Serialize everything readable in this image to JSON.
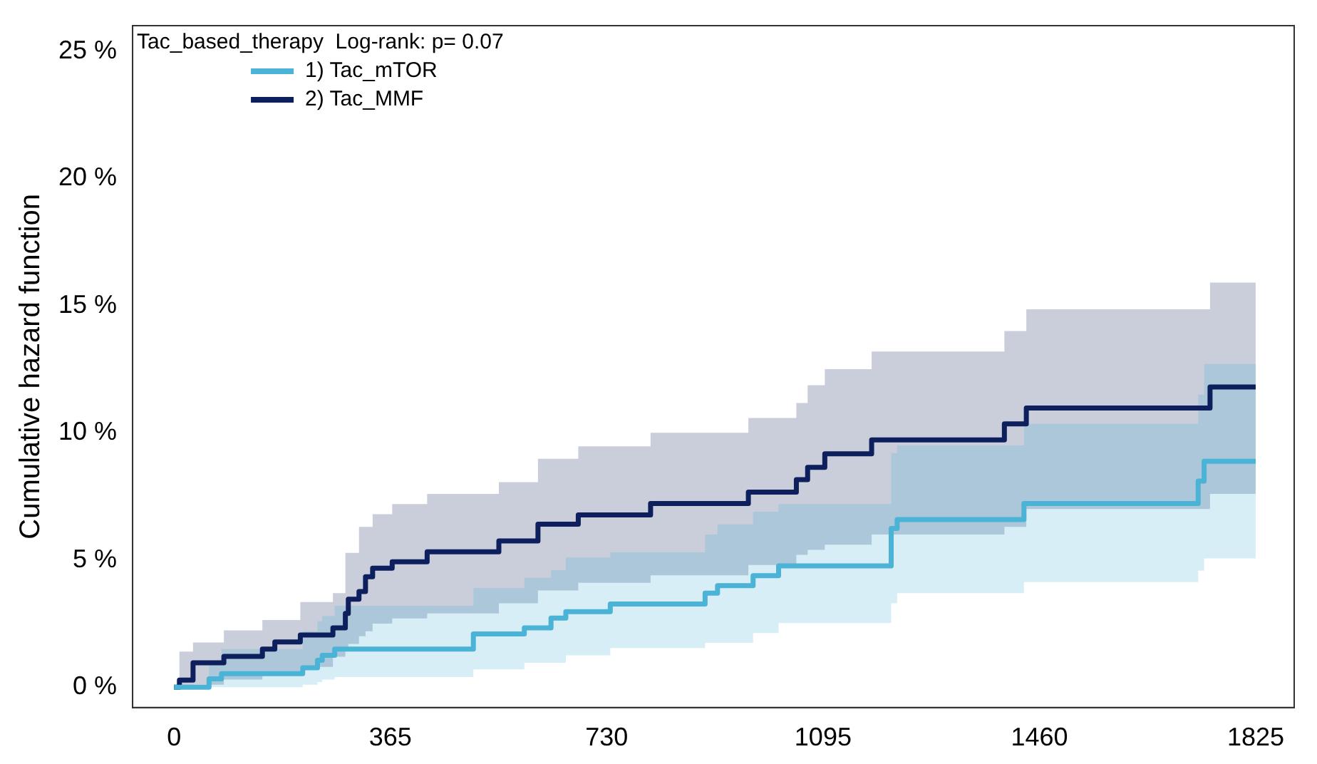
{
  "chart_data": {
    "type": "step",
    "ylabel": "Cumulative hazard function",
    "legend_title": "Tac_based_therapy  Log-rank: p= 0.07",
    "legend": "top left",
    "grid": false,
    "line_style": "solid",
    "marker": "none",
    "xlim": [
      -70,
      1890
    ],
    "xticks": [
      0,
      365,
      730,
      1095,
      1460,
      1825
    ],
    "ylim": [
      -0.8,
      26
    ],
    "yticks": [
      {
        "value": 0,
        "label": "0 %"
      },
      {
        "value": 5,
        "label": "5 %"
      },
      {
        "value": 10,
        "label": "10 %"
      },
      {
        "value": 15,
        "label": "15 %"
      },
      {
        "value": 20,
        "label": "20 %"
      },
      {
        "value": 25,
        "label": "25 %"
      }
    ],
    "series": [
      {
        "name": "1) Tac_mTOR",
        "color": "#4bb3d6",
        "x": [
          0,
          59,
          80,
          217,
          242,
          250,
          271,
          505,
          591,
          636,
          661,
          736,
          896,
          917,
          977,
          1020,
          1210,
          1220,
          1434,
          1728,
          1738,
          1825
        ],
        "values": [
          0,
          0.33,
          0.53,
          0.76,
          1.06,
          1.25,
          1.5,
          2.09,
          2.33,
          2.72,
          2.97,
          3.27,
          3.7,
          3.99,
          4.38,
          4.77,
          6.24,
          6.59,
          7.22,
          8.1,
          8.88,
          8.88
        ],
        "lower": [
          0,
          0,
          0,
          0.1,
          0.2,
          0.3,
          0.4,
          0.7,
          0.96,
          0.96,
          1.25,
          1.54,
          1.74,
          1.74,
          2.13,
          2.52,
          3.3,
          3.7,
          4.13,
          4.58,
          5.06,
          5.06
        ],
        "upper": [
          0,
          1,
          1.5,
          2.2,
          2.6,
          2.8,
          3.2,
          3.9,
          4.3,
          4.6,
          5.1,
          5.3,
          6,
          6.4,
          6.9,
          7.2,
          9.2,
          9.5,
          10.35,
          11.5,
          12.7,
          12.7
        ]
      },
      {
        "name": "2) Tac_MMF",
        "color": "#0d1f5c",
        "x": [
          0,
          9,
          32,
          84,
          149,
          170,
          213,
          268,
          289,
          294,
          312,
          323,
          335,
          368,
          427,
          548,
          614,
          682,
          804,
          969,
          1050,
          1069,
          1098,
          1177,
          1401,
          1438,
          1748,
          1825
        ],
        "values": [
          0,
          0.28,
          0.96,
          1.21,
          1.5,
          1.78,
          2.05,
          2.33,
          2.9,
          3.46,
          3.76,
          4.34,
          4.68,
          4.93,
          5.32,
          5.75,
          6.41,
          6.77,
          7.22,
          7.67,
          8.16,
          8.64,
          9.17,
          9.72,
          10.35,
          10.97,
          11.8,
          11.8
        ],
        "lower": [
          0,
          0,
          0.1,
          0.3,
          0.5,
          0.6,
          0.8,
          1.2,
          1.5,
          1.7,
          2,
          2.2,
          2.5,
          2.7,
          2.9,
          3.3,
          3.8,
          4.1,
          4.4,
          4.8,
          5.2,
          5.4,
          5.6,
          6,
          6.3,
          7,
          7.6,
          7.6
        ],
        "upper": [
          0,
          1.4,
          1.76,
          2.23,
          2.64,
          2.64,
          3.35,
          3.7,
          5.28,
          5.28,
          6.3,
          6.3,
          6.8,
          7.2,
          7.6,
          8.06,
          8.98,
          9.47,
          10,
          10.58,
          11.17,
          11.87,
          12.5,
          13.19,
          14,
          14.85,
          15.9,
          15.9
        ]
      }
    ]
  }
}
